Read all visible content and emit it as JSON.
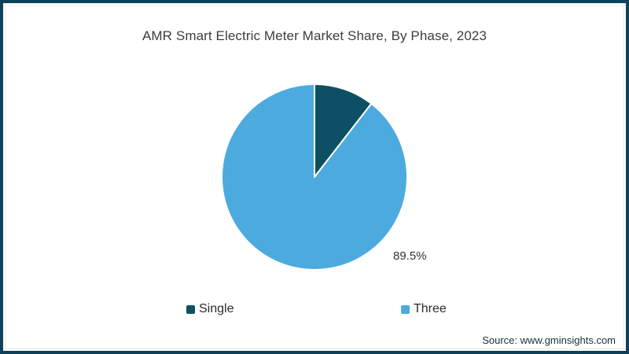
{
  "chart_data": {
    "type": "pie",
    "title": "AMR Smart Electric Meter Market Share, By Phase, 2023",
    "slices": [
      {
        "label": "Single",
        "value": 10.5,
        "color": "#0d5065",
        "data_label": ""
      },
      {
        "label": "Three",
        "value": 89.5,
        "color": "#4caade",
        "data_label": "89.5%"
      }
    ],
    "start_angle_deg": 0,
    "direction": "clockwise",
    "legend_position": "bottom",
    "stroke_color": "#ffffff",
    "stroke_width": 2
  },
  "frame": {
    "source_label": "Source: www.gminsights.com"
  },
  "colors": {
    "frame_border": "#0e425a",
    "inner_border": "#e4ebee",
    "background": "#ffffff",
    "title_text": "#3d3d3d",
    "data_label_text": "#333333",
    "legend_text": "#2b2b2b",
    "source_text": "#16323f"
  }
}
